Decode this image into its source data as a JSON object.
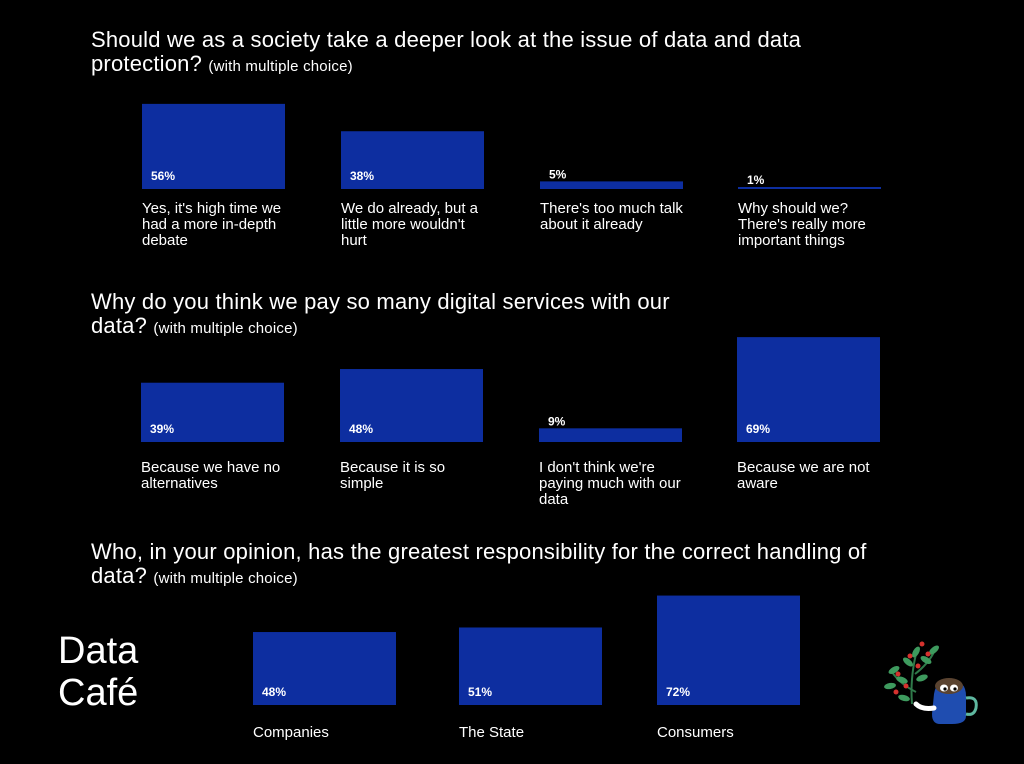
{
  "chart_data": [
    {
      "type": "bar",
      "title": "Should we as a society take a deeper look at the issue of data and data protection?",
      "subtitle": "(with multiple choice)",
      "categories": [
        "Yes, it's high time we had a more in-depth debate",
        "We do already, but a little more wouldn't hurt",
        "There's too much talk about it already",
        "Why should we? There's really more important things"
      ],
      "values": [
        56,
        38,
        5,
        1
      ],
      "value_labels": [
        "56%",
        "38%",
        "5%",
        "1%"
      ],
      "unit": "%"
    },
    {
      "type": "bar",
      "title": "Why do you think we pay so many digital services with our data?",
      "subtitle": "(with multiple choice)",
      "categories": [
        "Because we have no alternatives",
        "Because it is so simple",
        "I don't think we're paying much with our data",
        "Because we are not aware"
      ],
      "values": [
        39,
        48,
        9,
        69
      ],
      "value_labels": [
        "39%",
        "48%",
        "9%",
        "69%"
      ],
      "unit": "%"
    },
    {
      "type": "bar",
      "title": "Who, in your opinion, has the greatest responsibility for the correct handling of data?",
      "subtitle": "(with multiple choice)",
      "categories": [
        "Companies",
        "The State",
        "Consumers"
      ],
      "values": [
        48,
        51,
        72
      ],
      "value_labels": [
        "48%",
        "51%",
        "72%"
      ],
      "unit": "%"
    }
  ],
  "brand": {
    "line1": "Data",
    "line2": "Café"
  },
  "colors": {
    "bar": "#0d2ea0",
    "background": "#000000",
    "text": "#ffffff"
  },
  "mascot_icon": "coffee-mug-with-plant-icon"
}
